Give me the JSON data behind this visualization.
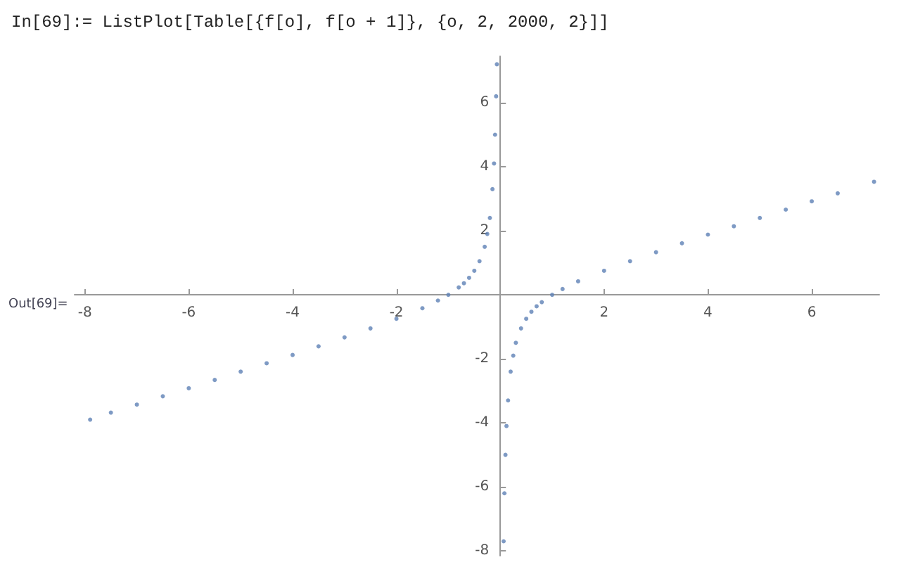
{
  "chart_data": {
    "type": "scatter",
    "annotations": [
      "In[69]:= ListPlot[Table[{f[o], f[o + 1]}, {o, 2, 2000, 2}]]",
      "Out[69]="
    ],
    "x": [
      -7.9,
      -7.5,
      -7,
      -6.5,
      -6,
      -5.5,
      -5,
      -4.5,
      -4,
      -3.5,
      -3,
      -2.5,
      -2,
      -1.5,
      -1.2,
      -1.0,
      -0.8,
      -0.7,
      -0.6,
      -0.5,
      -0.4,
      -0.3,
      -0.25,
      -0.2,
      -0.15,
      -0.12,
      -0.1,
      -0.08,
      -0.065,
      0.065,
      0.08,
      0.1,
      0.12,
      0.15,
      0.2,
      0.25,
      0.3,
      0.4,
      0.5,
      0.6,
      0.7,
      0.8,
      1.0,
      1.2,
      1.5,
      2.0,
      2.5,
      3.0,
      3.5,
      4.0,
      4.5,
      5.0,
      5.5,
      6.0,
      6.5,
      7.2
    ],
    "values": [
      -3.9,
      -3.68,
      -3.43,
      -3.17,
      -2.92,
      -2.66,
      -2.4,
      -2.14,
      -1.88,
      -1.61,
      -1.33,
      -1.05,
      -0.75,
      -0.42,
      -0.18,
      0,
      0.23,
      0.36,
      0.53,
      0.75,
      1.05,
      1.5,
      1.9,
      2.4,
      3.3,
      4.1,
      5.0,
      6.2,
      7.2,
      -7.7,
      -6.2,
      -5.0,
      -4.1,
      -3.3,
      -2.4,
      -1.9,
      -1.5,
      -1.05,
      -0.75,
      -0.53,
      -0.36,
      -0.23,
      0,
      0.18,
      0.42,
      0.75,
      1.05,
      1.33,
      1.61,
      1.88,
      2.14,
      2.4,
      2.66,
      2.92,
      3.17,
      3.53
    ],
    "color": "#5e81b5",
    "marker": "circle",
    "xlim": [
      -8.2,
      7.3
    ],
    "ylim": [
      -8.15,
      7.45
    ],
    "xticks": [
      -8,
      -6,
      -4,
      -2,
      2,
      4,
      6
    ],
    "yticks": [
      -8,
      -6,
      -4,
      -2,
      2,
      4,
      6
    ],
    "grid": false
  }
}
